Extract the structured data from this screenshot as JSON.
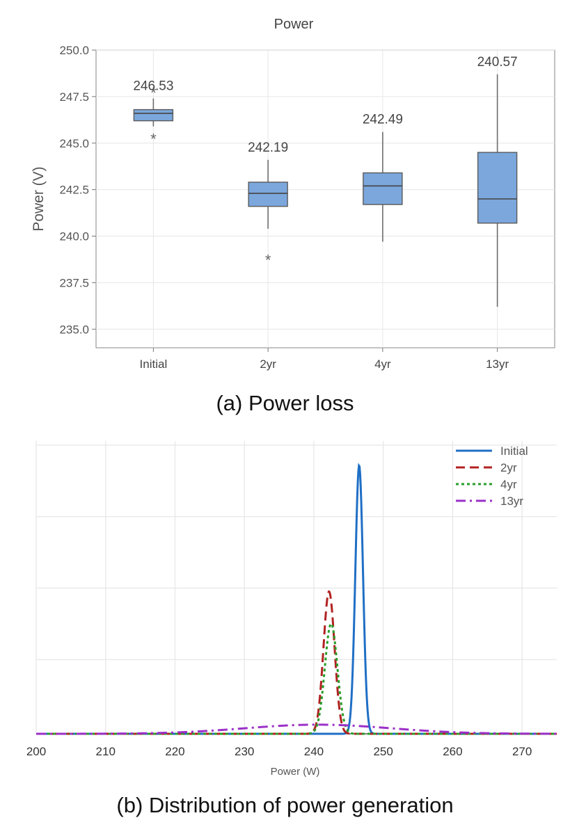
{
  "chart_data": [
    {
      "type": "box",
      "title": "Power",
      "xlabel": "",
      "ylabel": "Power (V)",
      "ylim": [
        234.0,
        250.0
      ],
      "yticks": [
        "250.0",
        "247.5",
        "245.0",
        "242.5",
        "240.0",
        "237.5",
        "235.0"
      ],
      "categories": [
        "Initial",
        "2yr",
        "4yr",
        "13yr"
      ],
      "boxes": [
        {
          "category": "Initial",
          "whisker_low": 245.9,
          "q1": 246.2,
          "median": 246.6,
          "q3": 246.8,
          "whisker_high": 247.4,
          "outliers": [
            247.8,
            245.3
          ],
          "label": "246.53"
        },
        {
          "category": "2yr",
          "whisker_low": 240.4,
          "q1": 241.6,
          "median": 242.3,
          "q3": 242.9,
          "whisker_high": 244.1,
          "outliers": [
            238.8
          ],
          "label": "242.19"
        },
        {
          "category": "4yr",
          "whisker_low": 239.7,
          "q1": 241.7,
          "median": 242.7,
          "q3": 243.4,
          "whisker_high": 245.6,
          "outliers": [],
          "label": "242.49"
        },
        {
          "category": "13yr",
          "whisker_low": 236.2,
          "q1": 240.7,
          "median": 242.0,
          "q3": 244.5,
          "whisker_high": 248.7,
          "outliers": [],
          "label": "240.57"
        }
      ],
      "box_color": "#7ba7dc",
      "grid": true
    },
    {
      "type": "line",
      "title": "",
      "xlabel": "Power (W)",
      "ylabel": "",
      "xlim": [
        200,
        275
      ],
      "xticks": [
        "200",
        "210",
        "220",
        "230",
        "240",
        "250",
        "260",
        "270"
      ],
      "legend_position": "top-right",
      "grid": true,
      "series": [
        {
          "name": "Initial",
          "color": "#1f6fc5",
          "style": "solid",
          "mean": 246.53,
          "std": 0.55,
          "peak": 1.0
        },
        {
          "name": "2yr",
          "color": "#b22222",
          "style": "dashed",
          "mean": 242.19,
          "std": 0.8,
          "peak": 0.53
        },
        {
          "name": "4yr",
          "color": "#2a9d2a",
          "style": "dotted",
          "mean": 242.49,
          "std": 0.9,
          "peak": 0.41
        },
        {
          "name": "13yr",
          "color": "#9b30c8",
          "style": "dashdot",
          "mean": 240.57,
          "std": 10.5,
          "peak": 0.034
        }
      ]
    }
  ],
  "captions": {
    "a": "(a) Power loss",
    "b": "(b) Distribution of power generation"
  }
}
